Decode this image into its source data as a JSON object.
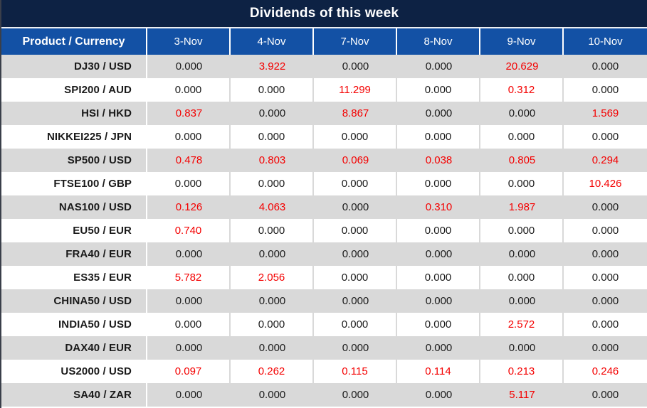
{
  "chart_data": {
    "type": "table",
    "title": "Dividends of this week",
    "corner_header": "Product / Currency",
    "columns": [
      "3-Nov",
      "4-Nov",
      "7-Nov",
      "8-Nov",
      "9-Nov",
      "10-Nov"
    ],
    "rows": [
      {
        "product": "DJ30 / USD",
        "values": [
          "0.000",
          "3.922",
          "0.000",
          "0.000",
          "20.629",
          "0.000"
        ]
      },
      {
        "product": "SPI200 / AUD",
        "values": [
          "0.000",
          "0.000",
          "11.299",
          "0.000",
          "0.312",
          "0.000"
        ]
      },
      {
        "product": "HSI / HKD",
        "values": [
          "0.837",
          "0.000",
          "8.867",
          "0.000",
          "0.000",
          "1.569"
        ]
      },
      {
        "product": "NIKKEI225 / JPN",
        "values": [
          "0.000",
          "0.000",
          "0.000",
          "0.000",
          "0.000",
          "0.000"
        ]
      },
      {
        "product": "SP500 / USD",
        "values": [
          "0.478",
          "0.803",
          "0.069",
          "0.038",
          "0.805",
          "0.294"
        ]
      },
      {
        "product": "FTSE100 / GBP",
        "values": [
          "0.000",
          "0.000",
          "0.000",
          "0.000",
          "0.000",
          "10.426"
        ]
      },
      {
        "product": "NAS100 / USD",
        "values": [
          "0.126",
          "4.063",
          "0.000",
          "0.310",
          "1.987",
          "0.000"
        ]
      },
      {
        "product": "EU50 / EUR",
        "values": [
          "0.740",
          "0.000",
          "0.000",
          "0.000",
          "0.000",
          "0.000"
        ]
      },
      {
        "product": "FRA40 / EUR",
        "values": [
          "0.000",
          "0.000",
          "0.000",
          "0.000",
          "0.000",
          "0.000"
        ]
      },
      {
        "product": "ES35 / EUR",
        "values": [
          "5.782",
          "2.056",
          "0.000",
          "0.000",
          "0.000",
          "0.000"
        ]
      },
      {
        "product": "CHINA50 / USD",
        "values": [
          "0.000",
          "0.000",
          "0.000",
          "0.000",
          "0.000",
          "0.000"
        ]
      },
      {
        "product": "INDIA50 / USD",
        "values": [
          "0.000",
          "0.000",
          "0.000",
          "0.000",
          "2.572",
          "0.000"
        ]
      },
      {
        "product": "DAX40 / EUR",
        "values": [
          "0.000",
          "0.000",
          "0.000",
          "0.000",
          "0.000",
          "0.000"
        ]
      },
      {
        "product": "US2000 / USD",
        "values": [
          "0.097",
          "0.262",
          "0.115",
          "0.114",
          "0.213",
          "0.246"
        ]
      },
      {
        "product": "SA40 / ZAR",
        "values": [
          "0.000",
          "0.000",
          "0.000",
          "0.000",
          "5.117",
          "0.000"
        ]
      }
    ],
    "highlight_rule": "non-zero values rendered in red",
    "legend_position": "none",
    "grid": "banded-rows"
  },
  "colors": {
    "title_bar_navy": "#0d2244",
    "header_blue": "#1351a5",
    "row_band_gray": "#d9d9d9",
    "value_nonzero_red": "#f40000",
    "value_zero_black": "#1a1a1a",
    "left_edge_border": "#3a3f4a"
  }
}
